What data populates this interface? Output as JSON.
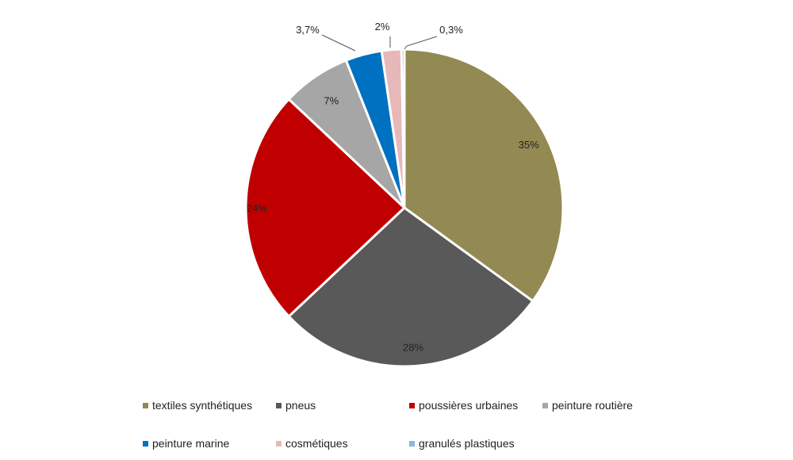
{
  "chart_data": {
    "type": "pie",
    "title": "",
    "slices": [
      {
        "name": "textiles synthétiques",
        "value": 35,
        "label": "35%",
        "color": "#938953"
      },
      {
        "name": "pneus",
        "value": 28,
        "label": "28%",
        "color": "#595959"
      },
      {
        "name": "poussières urbaines",
        "value": 24,
        "label": "24%",
        "color": "#c00000"
      },
      {
        "name": "peinture routière",
        "value": 7,
        "label": "7%",
        "color": "#a6a6a6"
      },
      {
        "name": "peinture marine",
        "value": 3.7,
        "label": "3,7%",
        "color": "#0070c0"
      },
      {
        "name": "cosmétiques",
        "value": 2,
        "label": "2%",
        "color": "#e6b9b8"
      },
      {
        "name": "granulés plastiques",
        "value": 0.3,
        "label": "0,3%",
        "color": "#8eb4e3"
      }
    ],
    "legend_position": "bottom",
    "start": "12 o'clock, clockwise"
  }
}
